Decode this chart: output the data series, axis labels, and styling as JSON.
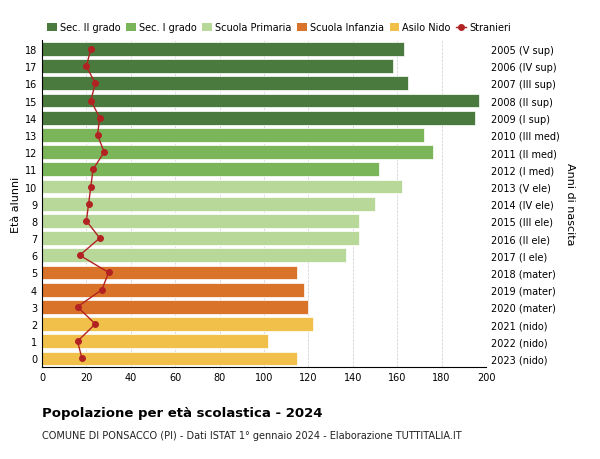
{
  "ages": [
    18,
    17,
    16,
    15,
    14,
    13,
    12,
    11,
    10,
    9,
    8,
    7,
    6,
    5,
    4,
    3,
    2,
    1,
    0
  ],
  "right_labels": [
    "2005 (V sup)",
    "2006 (IV sup)",
    "2007 (III sup)",
    "2008 (II sup)",
    "2009 (I sup)",
    "2010 (III med)",
    "2011 (II med)",
    "2012 (I med)",
    "2013 (V ele)",
    "2014 (IV ele)",
    "2015 (III ele)",
    "2016 (II ele)",
    "2017 (I ele)",
    "2018 (mater)",
    "2019 (mater)",
    "2020 (mater)",
    "2021 (nido)",
    "2022 (nido)",
    "2023 (nido)"
  ],
  "bar_values": [
    163,
    158,
    165,
    197,
    195,
    172,
    176,
    152,
    162,
    150,
    143,
    143,
    137,
    115,
    118,
    120,
    122,
    102,
    115
  ],
  "bar_colors": [
    "#4a7a3d",
    "#4a7a3d",
    "#4a7a3d",
    "#4a7a3d",
    "#4a7a3d",
    "#7ab55a",
    "#7ab55a",
    "#7ab55a",
    "#b8d89a",
    "#b8d89a",
    "#b8d89a",
    "#b8d89a",
    "#b8d89a",
    "#d9732a",
    "#d9732a",
    "#d9732a",
    "#f0c04a",
    "#f0c04a",
    "#f0c04a"
  ],
  "stranieri_values": [
    22,
    20,
    24,
    22,
    26,
    25,
    28,
    23,
    22,
    21,
    20,
    26,
    17,
    30,
    27,
    16,
    24,
    16,
    18
  ],
  "stranieri_color": "#b22222",
  "ylabel": "Età alunni",
  "ylabel_right": "Anni di nascita",
  "xlim": [
    0,
    200
  ],
  "xticks": [
    0,
    20,
    40,
    60,
    80,
    100,
    120,
    140,
    160,
    180,
    200
  ],
  "title": "Popolazione per età scolastica - 2024",
  "subtitle": "COMUNE DI PONSACCO (PI) - Dati ISTAT 1° gennaio 2024 - Elaborazione TUTTITALIA.IT",
  "legend_items": [
    {
      "label": "Sec. II grado",
      "color": "#4a7a3d"
    },
    {
      "label": "Sec. I grado",
      "color": "#7ab55a"
    },
    {
      "label": "Scuola Primaria",
      "color": "#b8d89a"
    },
    {
      "label": "Scuola Infanzia",
      "color": "#d9732a"
    },
    {
      "label": "Asilo Nido",
      "color": "#f0c04a"
    },
    {
      "label": "Stranieri",
      "color": "#b22222"
    }
  ],
  "background_color": "#ffffff",
  "plot_bg_color": "#ffffff",
  "grid_color": "#cccccc"
}
